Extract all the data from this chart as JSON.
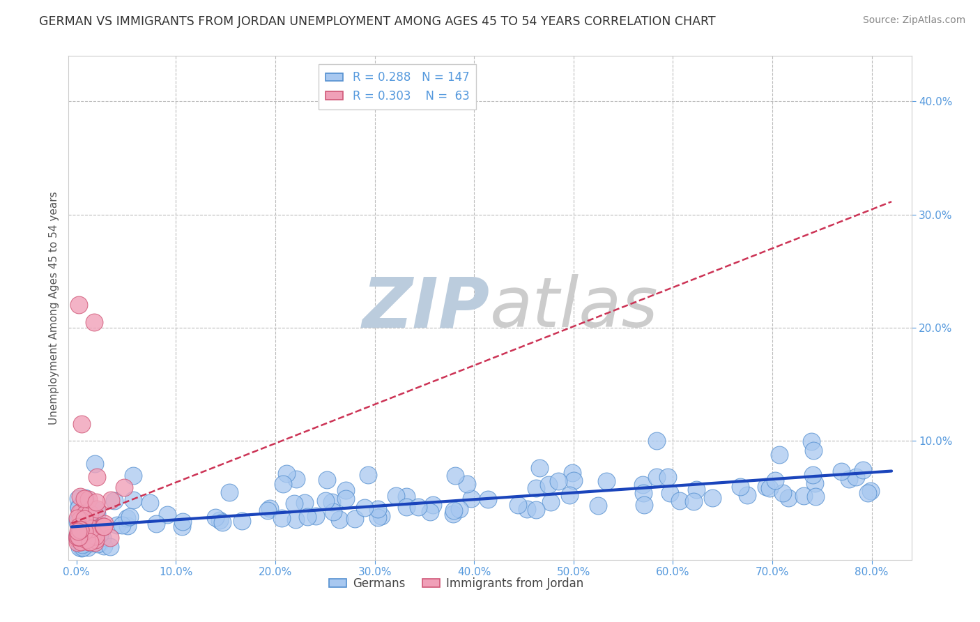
{
  "title": "GERMAN VS IMMIGRANTS FROM JORDAN UNEMPLOYMENT AMONG AGES 45 TO 54 YEARS CORRELATION CHART",
  "source": "Source: ZipAtlas.com",
  "ylabel": "Unemployment Among Ages 45 to 54 years",
  "watermark_zip": "ZIP",
  "watermark_atlas": "atlas",
  "legend_labels": [
    "Germans",
    "Immigrants from Jordan"
  ],
  "r_german": 0.288,
  "n_german": 147,
  "r_jordan": 0.303,
  "n_jordan": 63,
  "xlim": [
    -0.008,
    0.84
  ],
  "ylim": [
    -0.005,
    0.44
  ],
  "xticks": [
    0.0,
    0.1,
    0.2,
    0.3,
    0.4,
    0.5,
    0.6,
    0.7,
    0.8
  ],
  "yticks": [
    0.1,
    0.2,
    0.3,
    0.4
  ],
  "blue_color": "#A8C8F0",
  "blue_edge_color": "#5590D0",
  "pink_color": "#F0A0B8",
  "pink_edge_color": "#D05878",
  "trend_blue": "#1A44BB",
  "trend_pink": "#CC3355",
  "background_color": "#FFFFFF",
  "grid_color": "#BBBBBB",
  "title_color": "#333333",
  "axis_label_color": "#555555",
  "tick_label_color": "#5599DD",
  "watermark_color": "#DDDDDD",
  "zip_color": "#AACCEE",
  "atlas_color": "#CCCCCC"
}
